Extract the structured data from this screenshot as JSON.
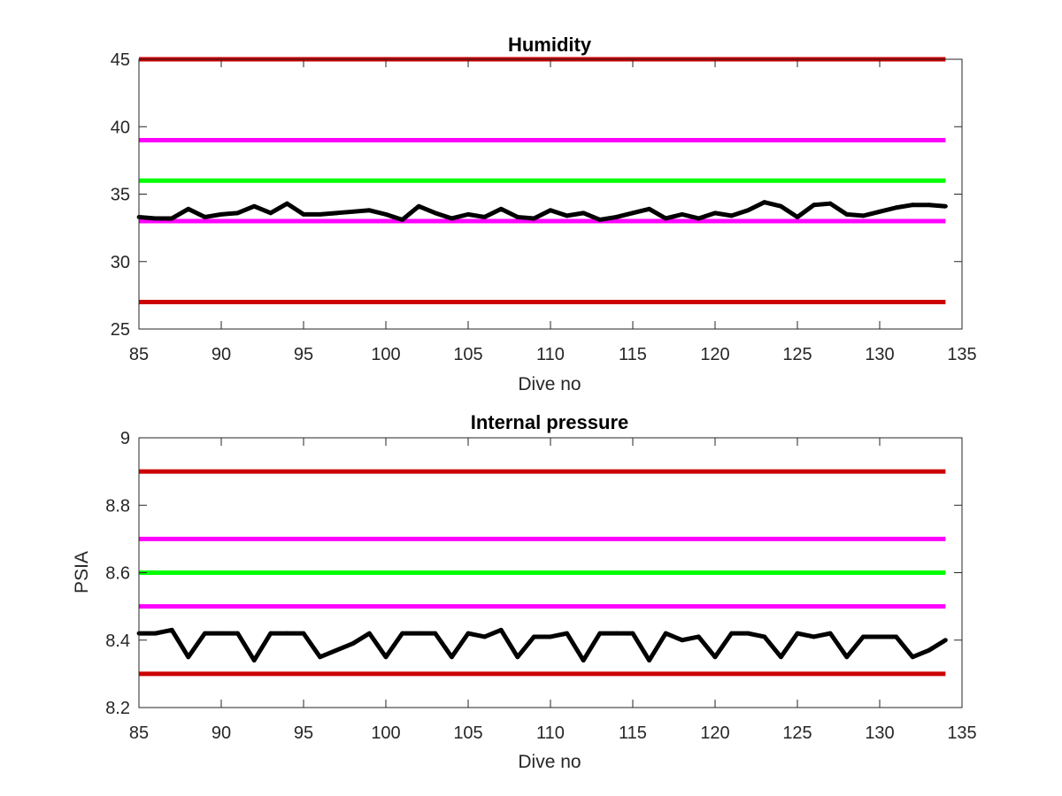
{
  "chart_data": [
    {
      "type": "line",
      "title": "Humidity",
      "xlabel": "Dive no",
      "ylabel": "",
      "xlim": [
        85,
        135
      ],
      "ylim": [
        25,
        45
      ],
      "xticks": [
        "85",
        "90",
        "95",
        "100",
        "105",
        "110",
        "115",
        "120",
        "125",
        "130",
        "135"
      ],
      "yticks": [
        "25",
        "30",
        "35",
        "40",
        "45"
      ],
      "grid": false,
      "thresholds": [
        {
          "value": 45,
          "color": "#cc0000"
        },
        {
          "value": 39,
          "color": "#ff00ff"
        },
        {
          "value": 36,
          "color": "#00ff00"
        },
        {
          "value": 33,
          "color": "#ff00ff"
        },
        {
          "value": 27,
          "color": "#cc0000"
        }
      ],
      "series": [
        {
          "color": "#000000",
          "x": [
            85,
            86,
            87,
            88,
            89,
            90,
            91,
            92,
            93,
            94,
            95,
            96,
            97,
            98,
            99,
            100,
            101,
            102,
            103,
            104,
            105,
            106,
            107,
            108,
            109,
            110,
            111,
            112,
            113,
            114,
            115,
            116,
            117,
            118,
            119,
            120,
            121,
            122,
            123,
            124,
            125,
            126,
            127,
            128,
            129,
            130,
            131,
            132,
            133,
            134
          ],
          "values": [
            33.3,
            33.2,
            33.2,
            33.9,
            33.3,
            33.5,
            33.6,
            34.1,
            33.6,
            34.3,
            33.5,
            33.5,
            33.6,
            33.7,
            33.8,
            33.5,
            33.1,
            34.1,
            33.6,
            33.2,
            33.5,
            33.3,
            33.9,
            33.3,
            33.2,
            33.8,
            33.4,
            33.6,
            33.1,
            33.3,
            33.6,
            33.9,
            33.2,
            33.5,
            33.2,
            33.6,
            33.4,
            33.8,
            34.4,
            34.1,
            33.3,
            34.2,
            34.3,
            33.5,
            33.4,
            33.7,
            34.0,
            34.2,
            34.2,
            34.1
          ]
        }
      ]
    },
    {
      "type": "line",
      "title": "Internal pressure",
      "xlabel": "Dive no",
      "ylabel": "PSIA",
      "xlim": [
        85,
        135
      ],
      "ylim": [
        8.2,
        9
      ],
      "xticks": [
        "85",
        "90",
        "95",
        "100",
        "105",
        "110",
        "115",
        "120",
        "125",
        "130",
        "135"
      ],
      "yticks": [
        "8.2",
        "8.4",
        "8.6",
        "8.8",
        "9"
      ],
      "grid": false,
      "thresholds": [
        {
          "value": 8.9,
          "color": "#cc0000"
        },
        {
          "value": 8.7,
          "color": "#ff00ff"
        },
        {
          "value": 8.6,
          "color": "#00ff00"
        },
        {
          "value": 8.5,
          "color": "#ff00ff"
        },
        {
          "value": 8.3,
          "color": "#cc0000"
        }
      ],
      "series": [
        {
          "color": "#000000",
          "x": [
            85,
            86,
            87,
            88,
            89,
            90,
            91,
            92,
            93,
            94,
            95,
            96,
            97,
            98,
            99,
            100,
            101,
            102,
            103,
            104,
            105,
            106,
            107,
            108,
            109,
            110,
            111,
            112,
            113,
            114,
            115,
            116,
            117,
            118,
            119,
            120,
            121,
            122,
            123,
            124,
            125,
            126,
            127,
            128,
            129,
            130,
            131,
            132,
            133,
            134
          ],
          "values": [
            8.42,
            8.42,
            8.43,
            8.35,
            8.42,
            8.42,
            8.42,
            8.34,
            8.42,
            8.42,
            8.42,
            8.35,
            8.37,
            8.39,
            8.42,
            8.35,
            8.42,
            8.42,
            8.42,
            8.35,
            8.42,
            8.41,
            8.43,
            8.35,
            8.41,
            8.41,
            8.42,
            8.34,
            8.42,
            8.42,
            8.42,
            8.34,
            8.42,
            8.4,
            8.41,
            8.35,
            8.42,
            8.42,
            8.41,
            8.35,
            8.42,
            8.41,
            8.42,
            8.35,
            8.41,
            8.41,
            8.41,
            8.35,
            8.37,
            8.4
          ]
        }
      ]
    }
  ]
}
